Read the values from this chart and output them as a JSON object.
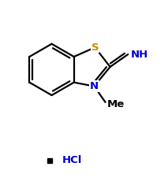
{
  "background_color": "#ffffff",
  "line_color": "#000000",
  "S_color": "#cc8800",
  "N_color": "#0000cc",
  "label_S": "S",
  "label_N": "N",
  "label_NH": "NH",
  "label_Me": "Me",
  "label_HCl": "HCl",
  "figsize": [
    2.13,
    2.35
  ],
  "dpi": 100,
  "lw": 1.6
}
